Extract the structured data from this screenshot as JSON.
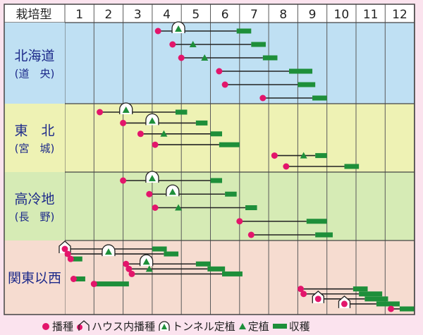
{
  "header": {
    "corner_label": "栽培型",
    "months": [
      "1",
      "2",
      "3",
      "4",
      "5",
      "6",
      "7",
      "8",
      "9",
      "10",
      "11",
      "12"
    ]
  },
  "regions": [
    {
      "name": "北海道",
      "sub": "(道　央)",
      "color": "#bfe0f3"
    },
    {
      "name": "東　北",
      "sub": "(宮　城)",
      "color": "#eef2b4"
    },
    {
      "name": "高冷地",
      "sub": "(長　野)",
      "color": "#d6ebb5"
    },
    {
      "name": "関東以西",
      "sub": "",
      "color": "#f6dcd0"
    }
  ],
  "chart_data": {
    "type": "table",
    "title": "",
    "xlabel": "",
    "ylabel": "",
    "month_axis": [
      1,
      13
    ],
    "month_labels": [
      "1",
      "2",
      "3",
      "4",
      "5",
      "6",
      "7",
      "8",
      "9",
      "10",
      "11",
      "12"
    ],
    "legend": [
      {
        "symbol": "sowing",
        "label": "播種"
      },
      {
        "symbol": "house-sowing",
        "label": "ハウス内播種"
      },
      {
        "symbol": "tunnel-planting",
        "label": "トンネル定植"
      },
      {
        "symbol": "planting",
        "label": "定植"
      },
      {
        "symbol": "harvest",
        "label": "収穫"
      }
    ],
    "colors": {
      "sowing": "#e3156b",
      "planting": "#1e8f3a",
      "harvest": "#1e8f3a",
      "line": "#222222",
      "grid": "#5a5a5a",
      "header_bg": "#ffffff",
      "page_bg": "#fbe3ee"
    },
    "regions": [
      {
        "region": "北海道",
        "schedules": [
          {
            "sow": {
              "at": 4.2,
              "kind": "sowing"
            },
            "plant": {
              "at": 4.9,
              "kind": "tunnel-planting"
            },
            "harvest": [
              6.9,
              7.4
            ]
          },
          {
            "sow": {
              "at": 4.7,
              "kind": "sowing"
            },
            "plant": {
              "at": 5.4,
              "kind": "planting"
            },
            "harvest": [
              7.4,
              7.9
            ]
          },
          {
            "sow": {
              "at": 5.0,
              "kind": "sowing"
            },
            "plant": {
              "at": 5.8,
              "kind": "planting"
            },
            "harvest": [
              7.8,
              8.3
            ]
          },
          {
            "sow": {
              "at": 6.3,
              "kind": "sowing"
            },
            "harvest": [
              8.7,
              9.5
            ]
          },
          {
            "sow": {
              "at": 6.5,
              "kind": "sowing"
            },
            "harvest": [
              9.0,
              9.6
            ]
          },
          {
            "sow": {
              "at": 7.8,
              "kind": "sowing"
            },
            "harvest": [
              9.5,
              10.0
            ]
          }
        ]
      },
      {
        "region": "東北",
        "schedules": [
          {
            "sow": {
              "at": 2.2,
              "kind": "sowing"
            },
            "plant": {
              "at": 3.1,
              "kind": "tunnel-planting"
            },
            "harvest": [
              4.8,
              5.2
            ]
          },
          {
            "sow": {
              "at": 3.0,
              "kind": "sowing"
            },
            "plant": {
              "at": 4.0,
              "kind": "tunnel-planting"
            },
            "harvest": [
              5.5,
              5.9
            ]
          },
          {
            "sow": {
              "at": 3.6,
              "kind": "sowing"
            },
            "plant": {
              "at": 4.4,
              "kind": "planting"
            },
            "harvest": [
              6.0,
              6.4
            ]
          },
          {
            "sow": {
              "at": 4.1,
              "kind": "sowing"
            },
            "harvest": [
              6.3,
              7.0
            ]
          },
          {
            "sow": {
              "at": 8.2,
              "kind": "sowing"
            },
            "plant": {
              "at": 9.2,
              "kind": "planting"
            },
            "harvest": [
              9.6,
              10.0
            ]
          },
          {
            "sow": {
              "at": 8.6,
              "kind": "sowing"
            },
            "harvest": [
              10.6,
              11.1
            ]
          }
        ]
      },
      {
        "region": "高冷地",
        "schedules": [
          {
            "sow": {
              "at": 3.0,
              "kind": "sowing"
            },
            "plant": {
              "at": 4.0,
              "kind": "tunnel-planting"
            },
            "harvest": [
              6.0,
              6.4
            ]
          },
          {
            "sow": {
              "at": 3.9,
              "kind": "sowing"
            },
            "plant": {
              "at": 4.7,
              "kind": "tunnel-planting"
            },
            "harvest": [
              6.5,
              6.9
            ]
          },
          {
            "sow": {
              "at": 4.1,
              "kind": "sowing"
            },
            "plant": {
              "at": 4.9,
              "kind": "planting"
            },
            "harvest": [
              7.2,
              7.6
            ]
          },
          {
            "sow": {
              "at": 7.0,
              "kind": "sowing"
            },
            "harvest": [
              9.3,
              10.0
            ]
          },
          {
            "sow": {
              "at": 7.4,
              "kind": "sowing"
            },
            "harvest": [
              9.6,
              10.2
            ]
          }
        ]
      },
      {
        "region": "関東以西",
        "schedules": [
          {
            "sow": {
              "at": 1.0,
              "kind": "house-sowing"
            },
            "harvest": [
              4.0,
              4.5
            ]
          },
          {
            "sow": {
              "at": 1.1,
              "kind": "sowing"
            },
            "plant": {
              "at": 2.5,
              "kind": "tunnel-planting"
            },
            "harvest": [
              4.4,
              4.9
            ]
          },
          {
            "sow": {
              "at": 1.2,
              "kind": "sowing"
            },
            "harvest": [
              1.2,
              1.6
            ]
          },
          {
            "sow": {
              "at": 3.1,
              "kind": "sowing"
            },
            "plant": {
              "at": 3.8,
              "kind": "tunnel-planting"
            },
            "harvest": [
              5.5,
              6.0
            ]
          },
          {
            "sow": {
              "at": 3.2,
              "kind": "sowing"
            },
            "plant": {
              "at": 3.9,
              "kind": "planting"
            },
            "harvest": [
              5.9,
              6.5
            ]
          },
          {
            "sow": {
              "at": 3.3,
              "kind": "sowing"
            },
            "harvest": [
              6.4,
              7.1
            ]
          },
          {
            "sow": {
              "at": 1.3,
              "kind": "sowing"
            },
            "harvest": [
              1.3,
              1.7
            ]
          },
          {
            "sow": {
              "at": 2.0,
              "kind": "sowing"
            },
            "harvest": [
              2.0,
              3.2
            ]
          },
          {
            "sow": {
              "at": 9.1,
              "kind": "sowing"
            },
            "harvest": [
              10.9,
              11.4
            ]
          },
          {
            "sow": {
              "at": 9.2,
              "kind": "sowing"
            },
            "harvest": [
              11.1,
              11.9
            ]
          },
          {
            "sow": {
              "at": 9.7,
              "kind": "house-sowing"
            },
            "harvest": [
              11.3,
              12.1
            ]
          },
          {
            "sow": {
              "at": 10.6,
              "kind": "house-sowing"
            },
            "harvest": [
              11.7,
              12.5
            ]
          },
          {
            "sow": {
              "at": 12.2,
              "kind": "sowing"
            },
            "harvest": [
              12.5,
              13.0
            ]
          }
        ]
      }
    ]
  }
}
